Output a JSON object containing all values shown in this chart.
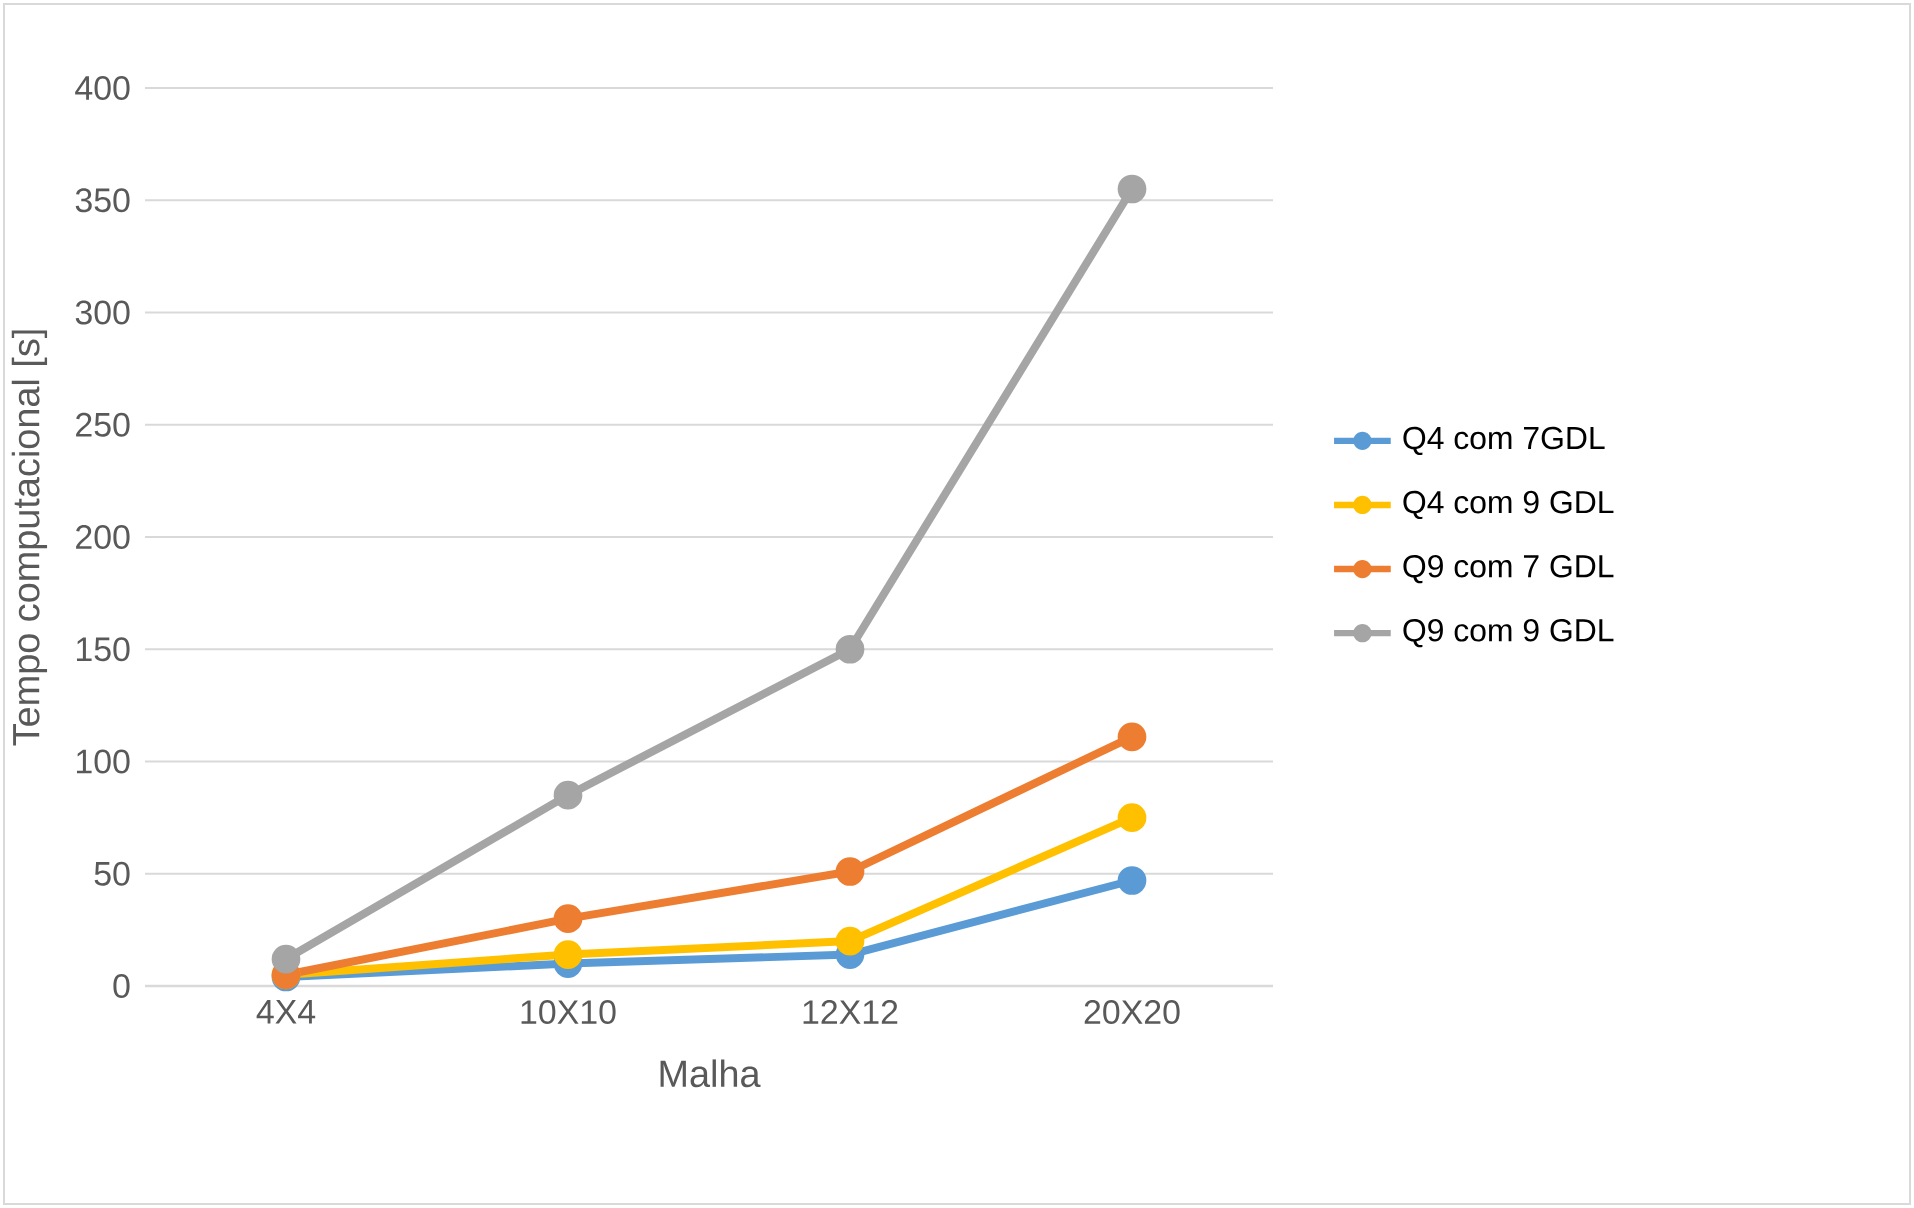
{
  "chart_data": {
    "type": "line",
    "xlabel": "Malha",
    "ylabel": "Tempo computacional [s]",
    "categories": [
      "4X4",
      "10X10",
      "12X12",
      "20X20"
    ],
    "series": [
      {
        "name": "Q4 com 7GDL",
        "color": "#5b9bd5",
        "values": [
          4,
          10,
          14,
          47
        ]
      },
      {
        "name": "Q4 com 9 GDL",
        "color": "#ffc000",
        "values": [
          5,
          14,
          20,
          75
        ]
      },
      {
        "name": "Q9 com 7 GDL",
        "color": "#ed7d31",
        "values": [
          5,
          30,
          51,
          111
        ]
      },
      {
        "name": "Q9 com 9 GDL",
        "color": "#a5a5a5",
        "values": [
          12,
          85,
          150,
          355
        ]
      }
    ],
    "ylim": [
      0,
      400
    ],
    "yticks": [
      0,
      50,
      100,
      150,
      200,
      250,
      300,
      350,
      400
    ],
    "grid": "y",
    "legend": "right",
    "marker": "circle",
    "line_style": "solid"
  }
}
